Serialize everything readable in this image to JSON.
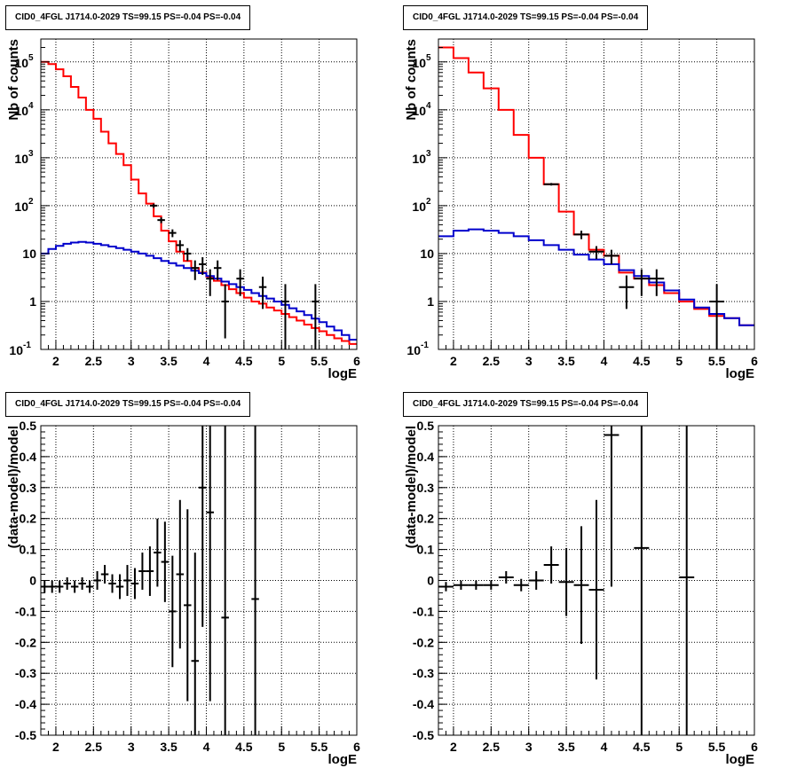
{
  "chart_data": [
    {
      "type": "line",
      "title": "CID0_4FGL J1714.0-2029 TS=99.15 PS=-0.04 PS=-0.04",
      "xlabel": "logE",
      "ylabel": "Nb of counts",
      "log_y": true,
      "xlim": [
        1.8,
        6
      ],
      "ylim": [
        0.1,
        300000
      ],
      "x_ticks": [
        "2",
        "2.5",
        "3",
        "3.5",
        "4",
        "4.5",
        "5",
        "5.5",
        "6"
      ],
      "y_ticks": [
        "10^-1",
        "1",
        "10",
        "10^2",
        "10^3",
        "10^4",
        "10^5"
      ],
      "grid": true,
      "series": [
        {
          "color": "#ff0000",
          "style": "step",
          "bin_edges": [
            1.8,
            1.9,
            2.0,
            2.1,
            2.2,
            2.3,
            2.4,
            2.5,
            2.6,
            2.7,
            2.8,
            2.9,
            3.0,
            3.1,
            3.2,
            3.3,
            3.4,
            3.5,
            3.6,
            3.7,
            3.8,
            3.9,
            4.0,
            4.1,
            4.2,
            4.3,
            4.4,
            4.5,
            4.6,
            4.7,
            4.8,
            4.9,
            5.0,
            5.1,
            5.2,
            5.3,
            5.4,
            5.5,
            5.6,
            5.7,
            5.8,
            5.9,
            6.0
          ],
          "values": [
            100000,
            90000,
            70000,
            50000,
            30000,
            18000,
            10000,
            6500,
            3500,
            2000,
            1200,
            700,
            350,
            180,
            110,
            60,
            30,
            18,
            11,
            7,
            5,
            4,
            3.3,
            2.7,
            2.2,
            1.8,
            1.5,
            1.2,
            1.0,
            0.9,
            0.75,
            0.65,
            0.55,
            0.47,
            0.4,
            0.33,
            0.28,
            0.24,
            0.2,
            0.17,
            0.15,
            0.13
          ]
        },
        {
          "color": "#0000cc",
          "style": "step",
          "bin_edges": [
            1.8,
            1.9,
            2.0,
            2.1,
            2.2,
            2.3,
            2.4,
            2.5,
            2.6,
            2.7,
            2.8,
            2.9,
            3.0,
            3.1,
            3.2,
            3.3,
            3.4,
            3.5,
            3.6,
            3.7,
            3.8,
            3.9,
            4.0,
            4.1,
            4.2,
            4.3,
            4.4,
            4.5,
            4.6,
            4.7,
            4.8,
            4.9,
            5.0,
            5.1,
            5.2,
            5.3,
            5.4,
            5.5,
            5.6,
            5.7,
            5.8,
            5.9,
            6.0
          ],
          "values": [
            10,
            12.5,
            14.5,
            16,
            17,
            17.5,
            17,
            16,
            15,
            14,
            13,
            12,
            11,
            10,
            9,
            8,
            7,
            6.3,
            5.6,
            5,
            4.4,
            3.9,
            3.4,
            3.0,
            2.6,
            2.3,
            2.0,
            1.75,
            1.5,
            1.3,
            1.15,
            1.0,
            0.85,
            0.72,
            0.62,
            0.52,
            0.44,
            0.37,
            0.3,
            0.25,
            0.2,
            0.16
          ]
        },
        {
          "color": "#000000",
          "style": "errorbar",
          "x": [
            3.3,
            3.4,
            3.55,
            3.65,
            3.75,
            3.85,
            3.95,
            4.05,
            4.15,
            4.25,
            4.45,
            4.75,
            5.05,
            5.45
          ],
          "xerr": 0.05,
          "y": [
            100,
            50,
            27,
            15,
            10,
            5,
            6,
            3,
            5,
            1,
            3,
            2,
            1,
            1
          ],
          "yerr_low": [
            10,
            7,
            5,
            4,
            3,
            2.2,
            2.4,
            1.7,
            2.2,
            0.83,
            1.7,
            1.3,
            0.9,
            0.9
          ],
          "yerr_high": [
            10,
            7,
            5,
            4,
            3,
            2.2,
            2.4,
            1.7,
            2.2,
            1.3,
            1.7,
            1.3,
            1.3,
            1.3
          ]
        }
      ]
    },
    {
      "type": "line",
      "title": "CID0_4FGL J1714.0-2029 TS=99.15 PS=-0.04 PS=-0.04",
      "xlabel": "logE",
      "ylabel": "Nb of counts",
      "log_y": true,
      "xlim": [
        1.8,
        6
      ],
      "ylim": [
        0.1,
        300000
      ],
      "x_ticks": [
        "2",
        "2.5",
        "3",
        "3.5",
        "4",
        "4.5",
        "5",
        "5.5",
        "6"
      ],
      "y_ticks": [
        "10^-1",
        "1",
        "10",
        "10^2",
        "10^3",
        "10^4",
        "10^5"
      ],
      "grid": true,
      "series": [
        {
          "color": "#ff0000",
          "style": "step",
          "bin_edges": [
            1.8,
            2.0,
            2.2,
            2.4,
            2.6,
            2.8,
            3.0,
            3.2,
            3.4,
            3.6,
            3.8,
            4.0,
            4.2,
            4.4,
            4.6,
            4.8,
            5.0,
            5.2,
            5.4,
            5.6,
            5.8,
            6.0
          ],
          "values": [
            200000,
            120000,
            60000,
            28000,
            10000,
            3000,
            1000,
            280,
            75,
            25,
            12,
            9,
            4,
            3,
            2.2,
            1.5,
            1.0,
            0.7,
            0.5,
            0.45,
            0.32
          ]
        },
        {
          "color": "#0000cc",
          "style": "step",
          "bin_edges": [
            1.8,
            2.0,
            2.2,
            2.4,
            2.6,
            2.8,
            3.0,
            3.2,
            3.4,
            3.6,
            3.8,
            4.0,
            4.2,
            4.4,
            4.6,
            4.8,
            5.0,
            5.2,
            5.4,
            5.6,
            5.8,
            6.0
          ],
          "values": [
            23,
            30,
            32,
            30,
            27,
            23,
            19,
            15,
            12,
            9.5,
            7.5,
            6,
            4.5,
            3.4,
            2.5,
            1.7,
            1.1,
            0.75,
            0.55,
            0.45,
            0.32
          ]
        },
        {
          "color": "#000000",
          "style": "errorbar",
          "x": [
            3.3,
            3.7,
            3.9,
            4.1,
            4.3,
            4.5,
            4.7,
            5.5
          ],
          "xerr": 0.1,
          "y": [
            280,
            25,
            11,
            9,
            2,
            3,
            3,
            1
          ],
          "yerr_low": [
            17,
            5,
            3.3,
            3,
            1.3,
            1.7,
            1.7,
            0.9
          ],
          "yerr_high": [
            17,
            5,
            3.3,
            3,
            1.5,
            1.7,
            1.7,
            1.3
          ]
        }
      ]
    },
    {
      "type": "scatter",
      "title": "CID0_4FGL J1714.0-2029 TS=99.15 PS=-0.04 PS=-0.04",
      "xlabel": "logE",
      "ylabel": "(data-model)/model",
      "xlim": [
        1.8,
        6
      ],
      "ylim": [
        -0.5,
        0.5
      ],
      "x_ticks": [
        "2",
        "2.5",
        "3",
        "3.5",
        "4",
        "4.5",
        "5",
        "5.5",
        "6"
      ],
      "y_ticks": [
        "-0.5",
        "-0.4",
        "-0.3",
        "-0.2",
        "-0.1",
        "0",
        "0.1",
        "0.2",
        "0.3",
        "0.4",
        "0.5"
      ],
      "grid": true,
      "series": [
        {
          "color": "#000000",
          "style": "errorbar",
          "x": [
            1.85,
            1.95,
            2.05,
            2.15,
            2.25,
            2.35,
            2.45,
            2.55,
            2.65,
            2.75,
            2.85,
            2.95,
            3.05,
            3.15,
            3.25,
            3.35,
            3.45,
            3.55,
            3.65,
            3.75,
            3.85,
            3.95,
            4.05,
            4.25,
            4.65
          ],
          "xerr": 0.05,
          "y": [
            -0.02,
            -0.02,
            -0.02,
            -0.01,
            -0.02,
            -0.01,
            -0.02,
            0.0,
            0.02,
            -0.01,
            -0.02,
            0.0,
            -0.01,
            0.03,
            0.03,
            0.09,
            0.06,
            -0.1,
            0.02,
            -0.08,
            -0.26,
            0.3,
            0.22,
            -0.12,
            -0.06
          ],
          "yerr": [
            0.02,
            0.02,
            0.02,
            0.02,
            0.02,
            0.02,
            0.02,
            0.03,
            0.03,
            0.03,
            0.04,
            0.05,
            0.05,
            0.06,
            0.08,
            0.11,
            0.13,
            0.18,
            0.24,
            0.31,
            0.35,
            0.45,
            0.61,
            0.8,
            0.9
          ]
        }
      ]
    },
    {
      "type": "scatter",
      "title": "CID0_4FGL J1714.0-2029 TS=99.15 PS=-0.04 PS=-0.04",
      "xlabel": "logE",
      "ylabel": "(data-model)/model",
      "xlim": [
        1.8,
        6
      ],
      "ylim": [
        -0.5,
        0.5
      ],
      "x_ticks": [
        "2",
        "2.5",
        "3",
        "3.5",
        "4",
        "4.5",
        "5",
        "5.5",
        "6"
      ],
      "y_ticks": [
        "-0.5",
        "-0.4",
        "-0.3",
        "-0.2",
        "-0.1",
        "0",
        "0.1",
        "0.2",
        "0.3",
        "0.4",
        "0.5"
      ],
      "grid": true,
      "series": [
        {
          "color": "#000000",
          "style": "errorbar",
          "x": [
            1.9,
            2.1,
            2.3,
            2.5,
            2.7,
            2.9,
            3.1,
            3.3,
            3.5,
            3.7,
            3.9,
            4.1,
            4.5,
            5.1
          ],
          "xerr": [
            0.1,
            0.1,
            0.1,
            0.1,
            0.1,
            0.1,
            0.1,
            0.1,
            0.1,
            0.1,
            0.1,
            0.1,
            0.1,
            0.1
          ],
          "y": [
            -0.02,
            -0.015,
            -0.015,
            -0.015,
            0.01,
            -0.015,
            0.0,
            0.05,
            -0.005,
            -0.015,
            -0.03,
            0.47,
            0.105,
            0.01
          ],
          "yerr": [
            0.015,
            0.015,
            0.015,
            0.015,
            0.02,
            0.02,
            0.03,
            0.06,
            0.11,
            0.19,
            0.29,
            0.49,
            0.7,
            0.9
          ]
        }
      ]
    }
  ]
}
